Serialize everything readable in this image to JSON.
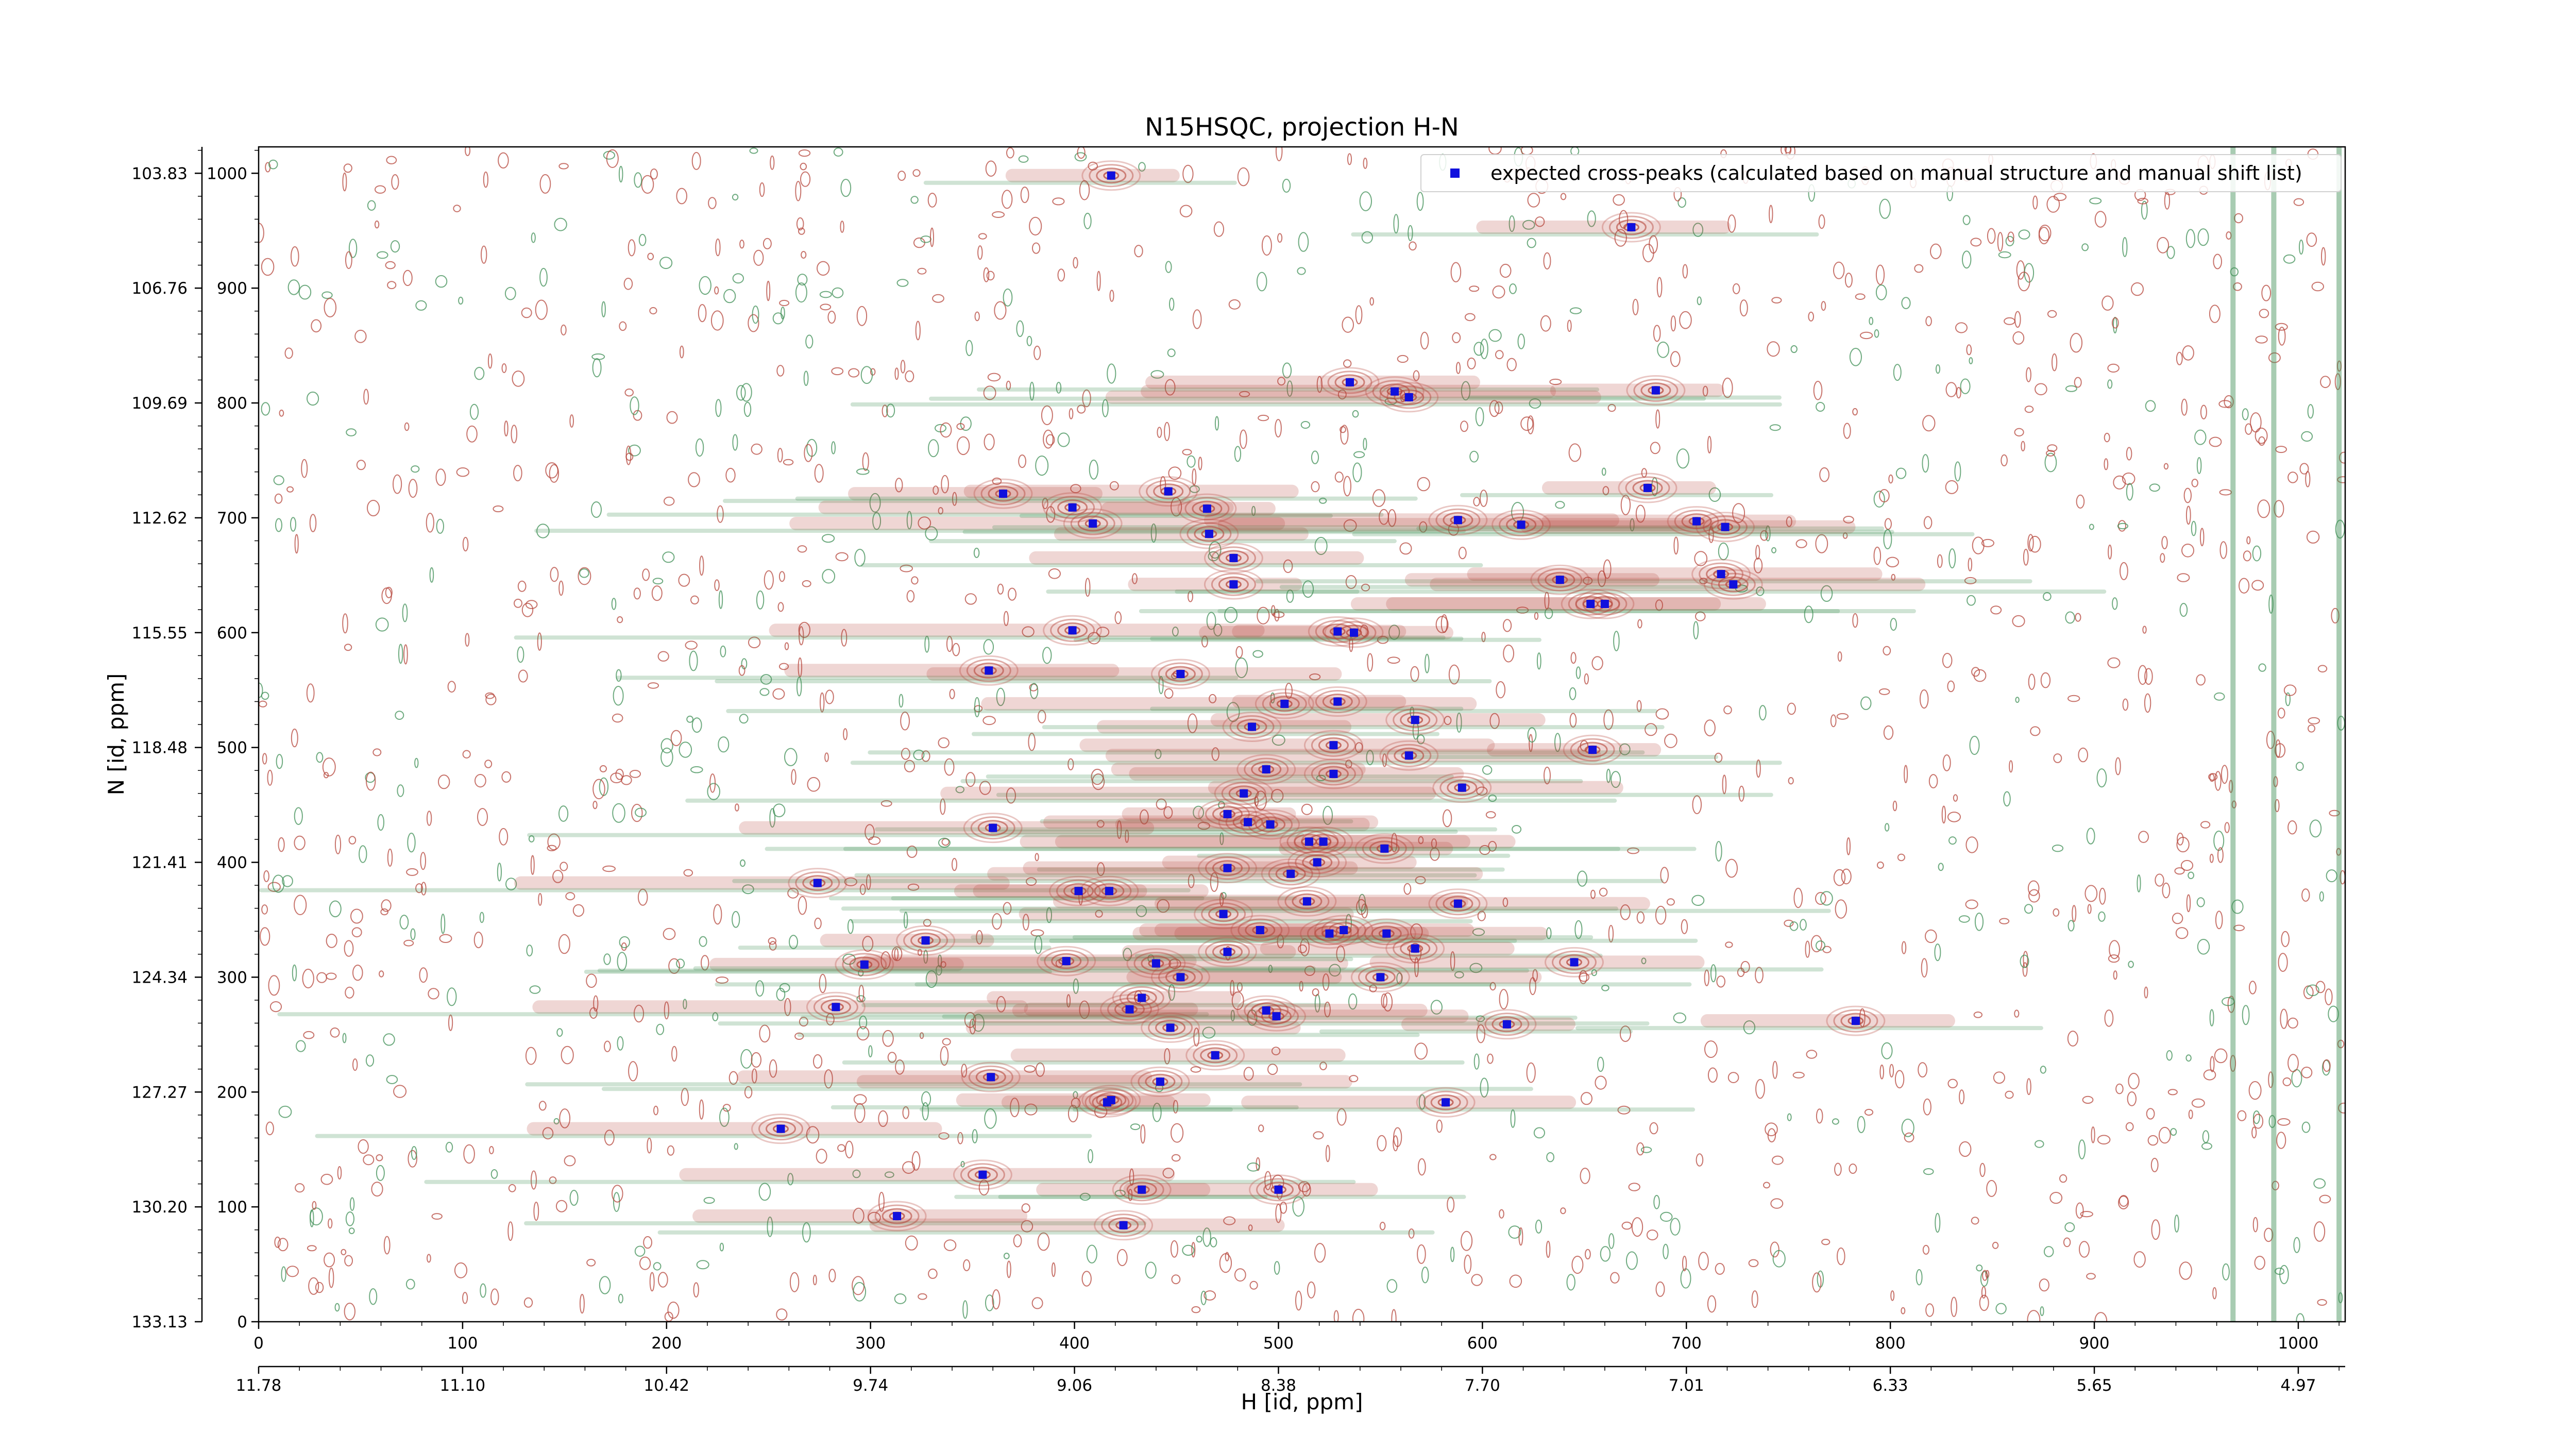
{
  "chart_data": {
    "type": "scatter",
    "title": "N15HSQC, projection H-N",
    "xlabel": "H [id, ppm]",
    "ylabel": "N [id, ppm]",
    "x_index_ticks": [
      "0",
      "100",
      "200",
      "300",
      "400",
      "500",
      "600",
      "700",
      "800",
      "900",
      "1000"
    ],
    "x_ppm_ticks": [
      "11.78",
      "11.10",
      "10.42",
      "9.74",
      "9.06",
      "8.38",
      "7.70",
      "7.01",
      "6.33",
      "5.65",
      "4.97"
    ],
    "y_index_ticks": [
      "0",
      "100",
      "200",
      "300",
      "400",
      "500",
      "600",
      "700",
      "800",
      "900",
      "1000"
    ],
    "y_ppm_ticks": [
      "133.13",
      "130.20",
      "127.27",
      "124.34",
      "121.41",
      "118.48",
      "115.55",
      "112.62",
      "109.69",
      "106.76",
      "103.83"
    ],
    "xlim": [
      0,
      1023
    ],
    "ylim": [
      0,
      1023
    ],
    "legend": {
      "label": "expected cross-peaks (calculated based on manual structure and manual shift list)",
      "placement": "top-right"
    },
    "colors": {
      "positive_contours": "#b5463b",
      "negative_contours": "#3f8f55",
      "marker": "#1010dd"
    },
    "series": [
      {
        "name": "expected cross-peaks (calculated based on manual structure and manual shift list)",
        "points": [
          [
            418,
            998
          ],
          [
            673,
            953
          ],
          [
            535,
            818
          ],
          [
            557,
            810
          ],
          [
            564,
            805
          ],
          [
            685,
            811
          ],
          [
            365,
            721
          ],
          [
            446,
            723
          ],
          [
            399,
            709
          ],
          [
            409,
            695
          ],
          [
            465,
            708
          ],
          [
            466,
            686
          ],
          [
            478,
            665
          ],
          [
            588,
            698
          ],
          [
            619,
            694
          ],
          [
            681,
            726
          ],
          [
            705,
            697
          ],
          [
            719,
            692
          ],
          [
            717,
            651
          ],
          [
            723,
            642
          ],
          [
            478,
            642
          ],
          [
            638,
            646
          ],
          [
            653,
            625
          ],
          [
            660,
            625
          ],
          [
            399,
            602
          ],
          [
            529,
            601
          ],
          [
            537,
            600
          ],
          [
            358,
            567
          ],
          [
            452,
            564
          ],
          [
            503,
            538
          ],
          [
            529,
            540
          ],
          [
            487,
            518
          ],
          [
            567,
            524
          ],
          [
            527,
            502
          ],
          [
            564,
            493
          ],
          [
            654,
            498
          ],
          [
            494,
            481
          ],
          [
            527,
            477
          ],
          [
            590,
            465
          ],
          [
            483,
            460
          ],
          [
            475,
            442
          ],
          [
            496,
            433
          ],
          [
            485,
            435
          ],
          [
            515,
            418
          ],
          [
            522,
            418
          ],
          [
            552,
            412
          ],
          [
            519,
            400
          ],
          [
            475,
            395
          ],
          [
            360,
            430
          ],
          [
            274,
            382
          ],
          [
            402,
            375
          ],
          [
            417,
            375
          ],
          [
            473,
            355
          ],
          [
            514,
            366
          ],
          [
            506,
            390
          ],
          [
            491,
            341
          ],
          [
            525,
            338
          ],
          [
            532,
            341
          ],
          [
            553,
            338
          ],
          [
            588,
            364
          ],
          [
            327,
            332
          ],
          [
            297,
            311
          ],
          [
            396,
            314
          ],
          [
            452,
            300
          ],
          [
            440,
            312
          ],
          [
            475,
            322
          ],
          [
            567,
            325
          ],
          [
            645,
            313
          ],
          [
            550,
            300
          ],
          [
            283,
            274
          ],
          [
            427,
            272
          ],
          [
            433,
            282
          ],
          [
            447,
            256
          ],
          [
            494,
            271
          ],
          [
            499,
            266
          ],
          [
            612,
            259
          ],
          [
            783,
            262
          ],
          [
            469,
            232
          ],
          [
            359,
            213
          ],
          [
            442,
            209
          ],
          [
            416,
            191
          ],
          [
            418,
            193
          ],
          [
            582,
            191
          ],
          [
            256,
            168
          ],
          [
            355,
            128
          ],
          [
            433,
            115
          ],
          [
            500,
            115
          ],
          [
            313,
            92
          ],
          [
            424,
            84
          ]
        ]
      }
    ]
  }
}
